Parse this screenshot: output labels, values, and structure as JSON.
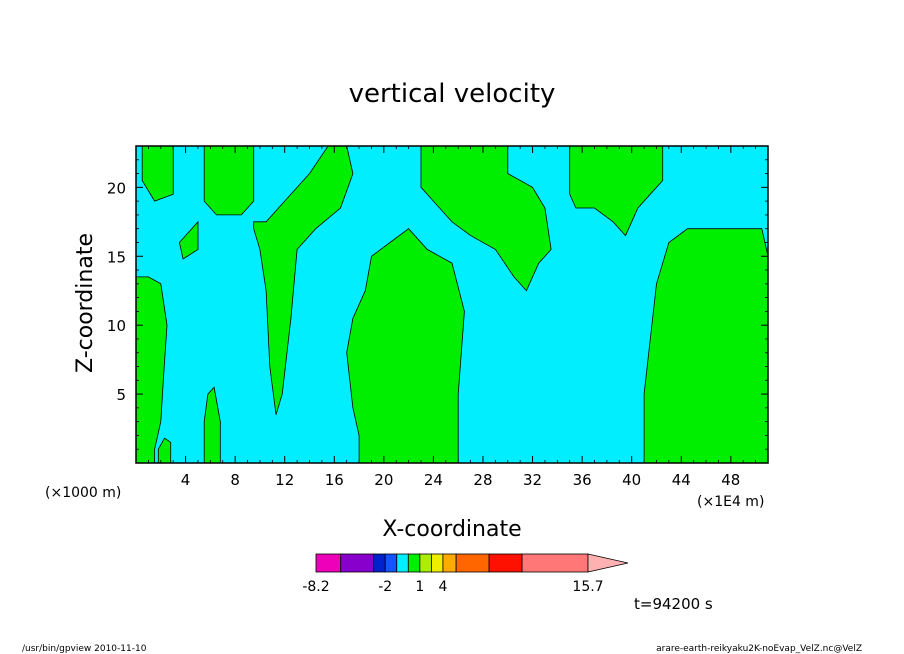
{
  "chart_data": {
    "type": "heatmap",
    "title": "vertical velocity",
    "xlabel": "X-coordinate",
    "ylabel": "Z-coordinate",
    "x_unit_left": "(×1000 m)",
    "x_unit_right": "(×1E4 m)",
    "xlim": [
      0,
      51
    ],
    "ylim": [
      0,
      23
    ],
    "x_ticks": [
      4,
      8,
      12,
      16,
      20,
      24,
      28,
      32,
      36,
      40,
      44,
      48
    ],
    "y_ticks": [
      5,
      10,
      15,
      20
    ],
    "background_level_color": "#00eeff",
    "positive_level_color": "#00ee00",
    "regions": [
      {
        "name": "top-left-lobe",
        "points": [
          [
            0.5,
            23
          ],
          [
            3,
            23
          ],
          [
            3,
            19.5
          ],
          [
            1.5,
            19
          ],
          [
            0.5,
            20.5
          ]
        ]
      },
      {
        "name": "top-mid-left-lobe",
        "points": [
          [
            5.5,
            23
          ],
          [
            9.5,
            23
          ],
          [
            9.5,
            19
          ],
          [
            8.5,
            18
          ],
          [
            6.5,
            18
          ],
          [
            5.5,
            19
          ]
        ]
      },
      {
        "name": "small-blob",
        "points": [
          [
            3.5,
            16
          ],
          [
            5,
            17.5
          ],
          [
            5,
            15.5
          ],
          [
            3.8,
            14.8
          ]
        ]
      },
      {
        "name": "mid-finger",
        "points": [
          [
            9.5,
            17.5
          ],
          [
            10.5,
            17.5
          ],
          [
            12,
            19
          ],
          [
            14,
            21
          ],
          [
            15.5,
            23
          ],
          [
            17,
            23
          ],
          [
            17.5,
            21
          ],
          [
            16.5,
            18.5
          ],
          [
            14.5,
            17
          ],
          [
            13,
            15.5
          ],
          [
            12.5,
            10.5
          ],
          [
            11.8,
            5
          ],
          [
            11.3,
            3.5
          ],
          [
            10.8,
            7
          ],
          [
            10.5,
            12.5
          ],
          [
            10,
            15.5
          ],
          [
            9.5,
            17
          ]
        ]
      },
      {
        "name": "center-column",
        "points": [
          [
            18,
            0
          ],
          [
            26,
            0
          ],
          [
            26,
            5
          ],
          [
            26.5,
            11
          ],
          [
            25.5,
            14.5
          ],
          [
            23.5,
            15.5
          ],
          [
            22,
            17
          ],
          [
            20.5,
            16
          ],
          [
            19,
            15
          ],
          [
            18.5,
            12.5
          ],
          [
            17.5,
            10.5
          ],
          [
            17,
            8
          ],
          [
            17.5,
            4
          ],
          [
            18,
            2
          ]
        ]
      },
      {
        "name": "upper-center-right",
        "points": [
          [
            23,
            23
          ],
          [
            30,
            23
          ],
          [
            30,
            21
          ],
          [
            32,
            20
          ],
          [
            33,
            18.5
          ],
          [
            33.5,
            15.5
          ],
          [
            32.5,
            14.5
          ],
          [
            31.5,
            12.5
          ],
          [
            30.5,
            13.5
          ],
          [
            29,
            15.5
          ],
          [
            27,
            16.5
          ],
          [
            25.5,
            17.5
          ],
          [
            24.5,
            18.5
          ],
          [
            23,
            20
          ]
        ]
      },
      {
        "name": "upper-right",
        "points": [
          [
            35,
            23
          ],
          [
            42.5,
            23
          ],
          [
            42.5,
            20.5
          ],
          [
            41.5,
            19.5
          ],
          [
            40.5,
            18.5
          ],
          [
            39.5,
            16.5
          ],
          [
            38.5,
            17.5
          ],
          [
            37,
            18.5
          ],
          [
            35.5,
            18.5
          ],
          [
            35,
            19.5
          ]
        ]
      },
      {
        "name": "right-block",
        "points": [
          [
            41,
            0
          ],
          [
            51,
            0
          ],
          [
            51,
            15
          ],
          [
            50.5,
            17
          ],
          [
            44.5,
            17
          ],
          [
            43,
            16
          ],
          [
            42,
            13
          ],
          [
            41.5,
            9
          ],
          [
            41,
            5
          ]
        ]
      },
      {
        "name": "left-strip",
        "points": [
          [
            0,
            0
          ],
          [
            1.5,
            0
          ],
          [
            1.5,
            1
          ],
          [
            2,
            3
          ],
          [
            2.2,
            6
          ],
          [
            2.5,
            10
          ],
          [
            2,
            13
          ],
          [
            1,
            13.5
          ],
          [
            0,
            13.5
          ]
        ]
      },
      {
        "name": "bottom-left-pocket",
        "points": [
          [
            1.8,
            0
          ],
          [
            2.8,
            0
          ],
          [
            2.8,
            1.5
          ],
          [
            2.3,
            1.8
          ],
          [
            1.8,
            1
          ]
        ]
      },
      {
        "name": "narrow-column",
        "points": [
          [
            5.5,
            0
          ],
          [
            6.8,
            0
          ],
          [
            6.8,
            3
          ],
          [
            6.3,
            5.5
          ],
          [
            5.8,
            5
          ],
          [
            5.5,
            3
          ]
        ]
      }
    ],
    "colorbar": {
      "colors": [
        "#ee00bb",
        "#8800cc",
        "#0022cc",
        "#1155ff",
        "#00eeff",
        "#00ee00",
        "#aaee00",
        "#eeee00",
        "#ffaa00",
        "#ff6600",
        "#ff1100",
        "#ff7777",
        "#ffb0b0"
      ],
      "tick_labels": [
        "-8.2",
        "-2",
        "1",
        "4",
        "15.7"
      ]
    },
    "time_label": "t=94200 s"
  },
  "footer": {
    "left": "/usr/bin/gpview  2010-11-10",
    "right": "arare-earth-reikyaku2K-noEvap_VelZ.nc@VelZ"
  }
}
